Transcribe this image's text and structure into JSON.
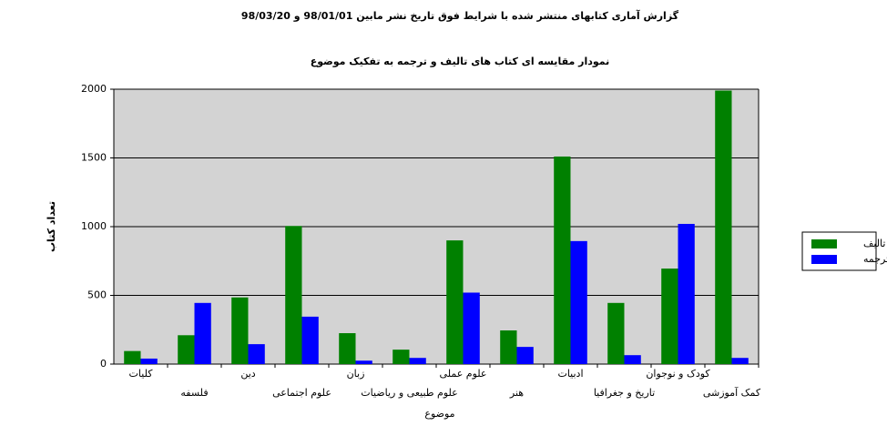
{
  "chart_data": {
    "type": "bar",
    "title": "گزارش آماری کتابهای منتشر شده با شرایط فوق تاریخ نشر مابین 98/01/01 و 98/03/20",
    "subtitle": "نمودار مقایسه ای کتاب های تالیف و ترجمه به تفکیک موضوع",
    "x_label": "موضوع",
    "y_label": "تعداد کتاب",
    "categories": [
      "کلیات",
      "فلسفه",
      "دین",
      "علوم اجتماعی",
      "زبان",
      "علوم طبیعی و ریاضیات",
      "علوم عملی",
      "هنر",
      "ادبیات",
      "تاریخ و جغرافیا",
      "کودک و نوجوان",
      "کمک آموزشی"
    ],
    "series": [
      {
        "name": "تالیف",
        "color": "#008000",
        "values": [
          95,
          210,
          485,
          1005,
          225,
          105,
          900,
          245,
          1510,
          445,
          695,
          1990
        ]
      },
      {
        "name": "ترجمه",
        "color": "#0000ff",
        "values": [
          40,
          445,
          145,
          345,
          25,
          45,
          520,
          125,
          895,
          65,
          1020,
          45
        ]
      }
    ],
    "ylim": [
      0,
      2000
    ],
    "yticks": [
      0,
      500,
      1000,
      1500,
      2000
    ],
    "grid": true,
    "legend": "right"
  }
}
